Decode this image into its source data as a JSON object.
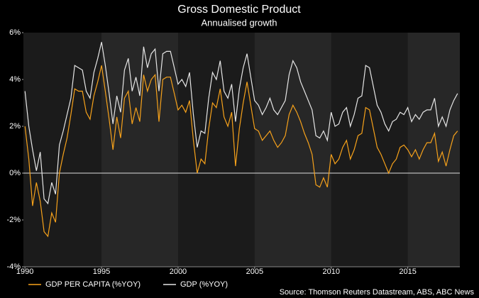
{
  "chart_data": {
    "type": "line",
    "title": "Gross Domestic Product",
    "subtitle": "Annualised growth",
    "source": "Source: Thomson Reuters Datastream, ABS, ABC News",
    "x": [
      1990,
      1990.25,
      1990.5,
      1990.75,
      1991,
      1991.25,
      1991.5,
      1991.75,
      1992,
      1992.25,
      1992.5,
      1992.75,
      1993,
      1993.25,
      1993.5,
      1993.75,
      1994,
      1994.25,
      1994.5,
      1994.75,
      1995,
      1995.25,
      1995.5,
      1995.75,
      1996,
      1996.25,
      1996.5,
      1996.75,
      1997,
      1997.25,
      1997.5,
      1997.75,
      1998,
      1998.25,
      1998.5,
      1998.75,
      1999,
      1999.25,
      1999.5,
      1999.75,
      2000,
      2000.25,
      2000.5,
      2000.75,
      2001,
      2001.25,
      2001.5,
      2001.75,
      2002,
      2002.25,
      2002.5,
      2002.75,
      2003,
      2003.25,
      2003.5,
      2003.75,
      2004,
      2004.25,
      2004.5,
      2004.75,
      2005,
      2005.25,
      2005.5,
      2005.75,
      2006,
      2006.25,
      2006.5,
      2006.75,
      2007,
      2007.25,
      2007.5,
      2007.75,
      2008,
      2008.25,
      2008.5,
      2008.75,
      2009,
      2009.25,
      2009.5,
      2009.75,
      2010,
      2010.25,
      2010.5,
      2010.75,
      2011,
      2011.25,
      2011.5,
      2011.75,
      2012,
      2012.25,
      2012.5,
      2012.75,
      2013,
      2013.25,
      2013.5,
      2013.75,
      2014,
      2014.25,
      2014.5,
      2014.75,
      2015,
      2015.25,
      2015.5,
      2015.75,
      2016,
      2016.25,
      2016.5,
      2016.75,
      2017,
      2017.25,
      2017.5,
      2017.75,
      2018,
      2018.25
    ],
    "series": [
      {
        "name": "GDP PER CAPITA (%YOY)",
        "color": "#f7a21b",
        "values": [
          2.0,
          0.6,
          -1.4,
          -0.4,
          -1.2,
          -2.5,
          -2.7,
          -1.7,
          -2.1,
          0.0,
          0.8,
          1.5,
          2.5,
          3.6,
          3.5,
          3.5,
          2.6,
          2.3,
          3.3,
          3.9,
          4.6,
          3.5,
          2.3,
          1.0,
          2.4,
          1.5,
          3.2,
          3.5,
          2.1,
          2.8,
          2.2,
          4.2,
          3.5,
          4.0,
          4.2,
          2.2,
          4.0,
          4.1,
          4.1,
          3.4,
          2.7,
          2.9,
          2.6,
          3.1,
          1.4,
          0.0,
          0.6,
          0.4,
          1.9,
          3.0,
          2.8,
          3.6,
          2.4,
          2.0,
          2.6,
          0.3,
          1.9,
          3.0,
          3.9,
          2.9,
          1.9,
          1.8,
          1.4,
          1.6,
          1.8,
          1.4,
          1.1,
          1.3,
          1.6,
          2.5,
          2.9,
          2.6,
          2.2,
          1.7,
          1.3,
          0.8,
          -0.5,
          -0.6,
          -0.2,
          -0.6,
          0.8,
          0.4,
          0.6,
          1.1,
          1.4,
          0.6,
          1.0,
          1.6,
          1.7,
          2.8,
          2.7,
          1.9,
          1.1,
          0.8,
          0.4,
          0.0,
          0.4,
          0.6,
          1.1,
          1.2,
          1.0,
          0.7,
          1.0,
          0.6,
          1.0,
          1.3,
          1.3,
          1.7,
          0.5,
          0.9,
          0.3,
          1.0,
          1.6,
          1.8
        ]
      },
      {
        "name": "GDP (%YOY)",
        "color": "#e6e6e6",
        "values": [
          3.5,
          2.0,
          1.0,
          0.1,
          0.9,
          -1.1,
          -1.3,
          -0.4,
          -0.9,
          1.2,
          1.8,
          2.5,
          3.2,
          4.6,
          4.5,
          4.4,
          3.5,
          3.2,
          4.3,
          4.9,
          5.6,
          4.6,
          3.4,
          2.1,
          3.3,
          2.6,
          4.4,
          4.9,
          3.5,
          4.1,
          3.3,
          5.4,
          4.5,
          5.1,
          5.3,
          3.5,
          5.1,
          5.2,
          5.2,
          4.5,
          3.8,
          4.0,
          3.7,
          4.3,
          2.5,
          1.1,
          1.8,
          1.7,
          3.2,
          4.3,
          4.0,
          4.8,
          3.5,
          3.2,
          3.8,
          2.2,
          3.6,
          4.5,
          5.1,
          4.1,
          3.1,
          2.9,
          2.5,
          2.8,
          3.2,
          2.7,
          2.5,
          2.8,
          3.1,
          4.2,
          4.8,
          4.5,
          3.9,
          3.5,
          3.1,
          2.7,
          1.6,
          1.5,
          1.8,
          1.4,
          2.6,
          2.0,
          2.1,
          2.6,
          2.8,
          2.0,
          2.5,
          3.2,
          3.3,
          4.6,
          4.5,
          3.7,
          2.9,
          2.6,
          2.1,
          1.8,
          2.2,
          2.3,
          2.6,
          2.5,
          2.8,
          2.2,
          2.5,
          2.3,
          2.6,
          2.7,
          2.7,
          3.2,
          2.0,
          2.4,
          2.0,
          2.7,
          3.1,
          3.4
        ]
      }
    ],
    "xlim": [
      1989.9,
      2018.4
    ],
    "xticks": [
      1990,
      1995,
      2000,
      2005,
      2010,
      2015
    ],
    "ylim": [
      -4,
      6
    ],
    "yticks": [
      {
        "value": -4,
        "label": "-4%"
      },
      {
        "value": -2,
        "label": "-2%"
      },
      {
        "value": 0,
        "label": "0%"
      },
      {
        "value": 2,
        "label": "2%"
      },
      {
        "value": 4,
        "label": "4%"
      },
      {
        "value": 6,
        "label": "6%"
      }
    ],
    "legend": "bottom-left"
  }
}
